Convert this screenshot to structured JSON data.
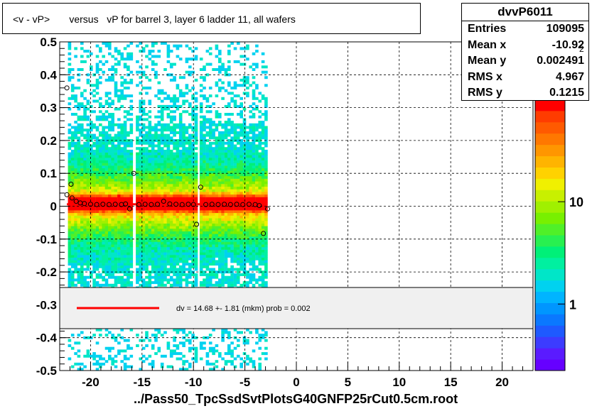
{
  "title": "<v - vP>       versus   vP for barrel 3, layer 6 ladder 11, all wafers",
  "footer": "../Pass50_TpcSsdSvtPlotsG40GNFP25rCut0.5cm.root",
  "stats": {
    "name": "dvvP6011",
    "rows": [
      {
        "label": "Entries",
        "value": "109095"
      },
      {
        "label": "Mean x",
        "value": "-10.92"
      },
      {
        "label": "Mean y",
        "value": "0.002491"
      },
      {
        "label": "RMS x",
        "value": "4.967"
      },
      {
        "label": "RMS y",
        "value": "0.1215"
      }
    ]
  },
  "palette_exponent": "2",
  "colors": {
    "fit_line": "#ff0000",
    "legend_bg": "#f0f0f0",
    "frame": "#000000"
  },
  "chart_data": {
    "type": "heatmap",
    "title": "<v - vP>       versus   vP for barrel 3, layer 6 ladder 11, all wafers",
    "xlim": [
      -23,
      23
    ],
    "ylim": [
      -0.5,
      0.5
    ],
    "x_ticks": [
      -20,
      -15,
      -10,
      -5,
      0,
      5,
      10,
      15,
      20
    ],
    "x_tick_labels": [
      "-20",
      "-15",
      "-10",
      "-5",
      "0",
      "5",
      "10",
      "15",
      "20"
    ],
    "y_ticks": [
      -0.5,
      -0.4,
      -0.3,
      -0.2,
      -0.1,
      0,
      0.1,
      0.2,
      0.3,
      0.4,
      0.5
    ],
    "y_tick_labels": [
      "-0.5",
      "-0.4",
      "-0.3",
      "-0.2",
      "-0.1",
      "0",
      "0.1",
      "0.2",
      "0.3",
      "0.4",
      "0.5"
    ],
    "grid": true,
    "colorbar": {
      "scale": "log",
      "labels": [
        {
          "value": 1,
          "text": "1"
        },
        {
          "value": 10,
          "text": "10"
        }
      ],
      "exponent_label": "2"
    },
    "bands": [
      [
        -22.2,
        -16.0
      ],
      [
        -15.6,
        -9.8
      ],
      [
        -9.4,
        -3.0
      ]
    ],
    "profile_points": [
      {
        "x": -22.3,
        "y": 0.36
      },
      {
        "x": -22.3,
        "y": 0.035
      },
      {
        "x": -21.9,
        "y": 0.067
      },
      {
        "x": -21.8,
        "y": 0.025
      },
      {
        "x": -21.4,
        "y": 0.015
      },
      {
        "x": -21.0,
        "y": 0.01
      },
      {
        "x": -20.6,
        "y": 0.008
      },
      {
        "x": -20.0,
        "y": 0.006
      },
      {
        "x": -19.4,
        "y": 0.005
      },
      {
        "x": -18.8,
        "y": 0.006
      },
      {
        "x": -18.2,
        "y": 0.005
      },
      {
        "x": -17.6,
        "y": 0.006
      },
      {
        "x": -17.0,
        "y": 0.005
      },
      {
        "x": -16.6,
        "y": 0.007
      },
      {
        "x": -16.2,
        "y": -0.008
      },
      {
        "x": -15.8,
        "y": 0.1
      },
      {
        "x": -15.3,
        "y": 0.005
      },
      {
        "x": -14.7,
        "y": 0.006
      },
      {
        "x": -14.1,
        "y": 0.005
      },
      {
        "x": -13.5,
        "y": 0.006
      },
      {
        "x": -12.9,
        "y": 0.015
      },
      {
        "x": -12.3,
        "y": 0.007
      },
      {
        "x": -11.7,
        "y": 0.006
      },
      {
        "x": -11.1,
        "y": 0.005
      },
      {
        "x": -10.5,
        "y": 0.006
      },
      {
        "x": -10.0,
        "y": 0.005
      },
      {
        "x": -9.7,
        "y": -0.055
      },
      {
        "x": -9.3,
        "y": 0.058
      },
      {
        "x": -8.8,
        "y": 0.005
      },
      {
        "x": -8.2,
        "y": 0.006
      },
      {
        "x": -7.6,
        "y": 0.005
      },
      {
        "x": -7.0,
        "y": 0.006
      },
      {
        "x": -6.4,
        "y": 0.005
      },
      {
        "x": -5.8,
        "y": 0.006
      },
      {
        "x": -5.2,
        "y": 0.005
      },
      {
        "x": -4.6,
        "y": 0.006
      },
      {
        "x": -4.0,
        "y": 0.005
      },
      {
        "x": -3.6,
        "y": 0.002
      },
      {
        "x": -3.2,
        "y": -0.083
      },
      {
        "x": -2.8,
        "y": -0.008
      }
    ],
    "fit": {
      "x_range": [
        -22.3,
        -3.0
      ],
      "y": 0.006,
      "label": "dv =   14.68 +-  1.81 (mkm) prob = 0.002"
    }
  }
}
